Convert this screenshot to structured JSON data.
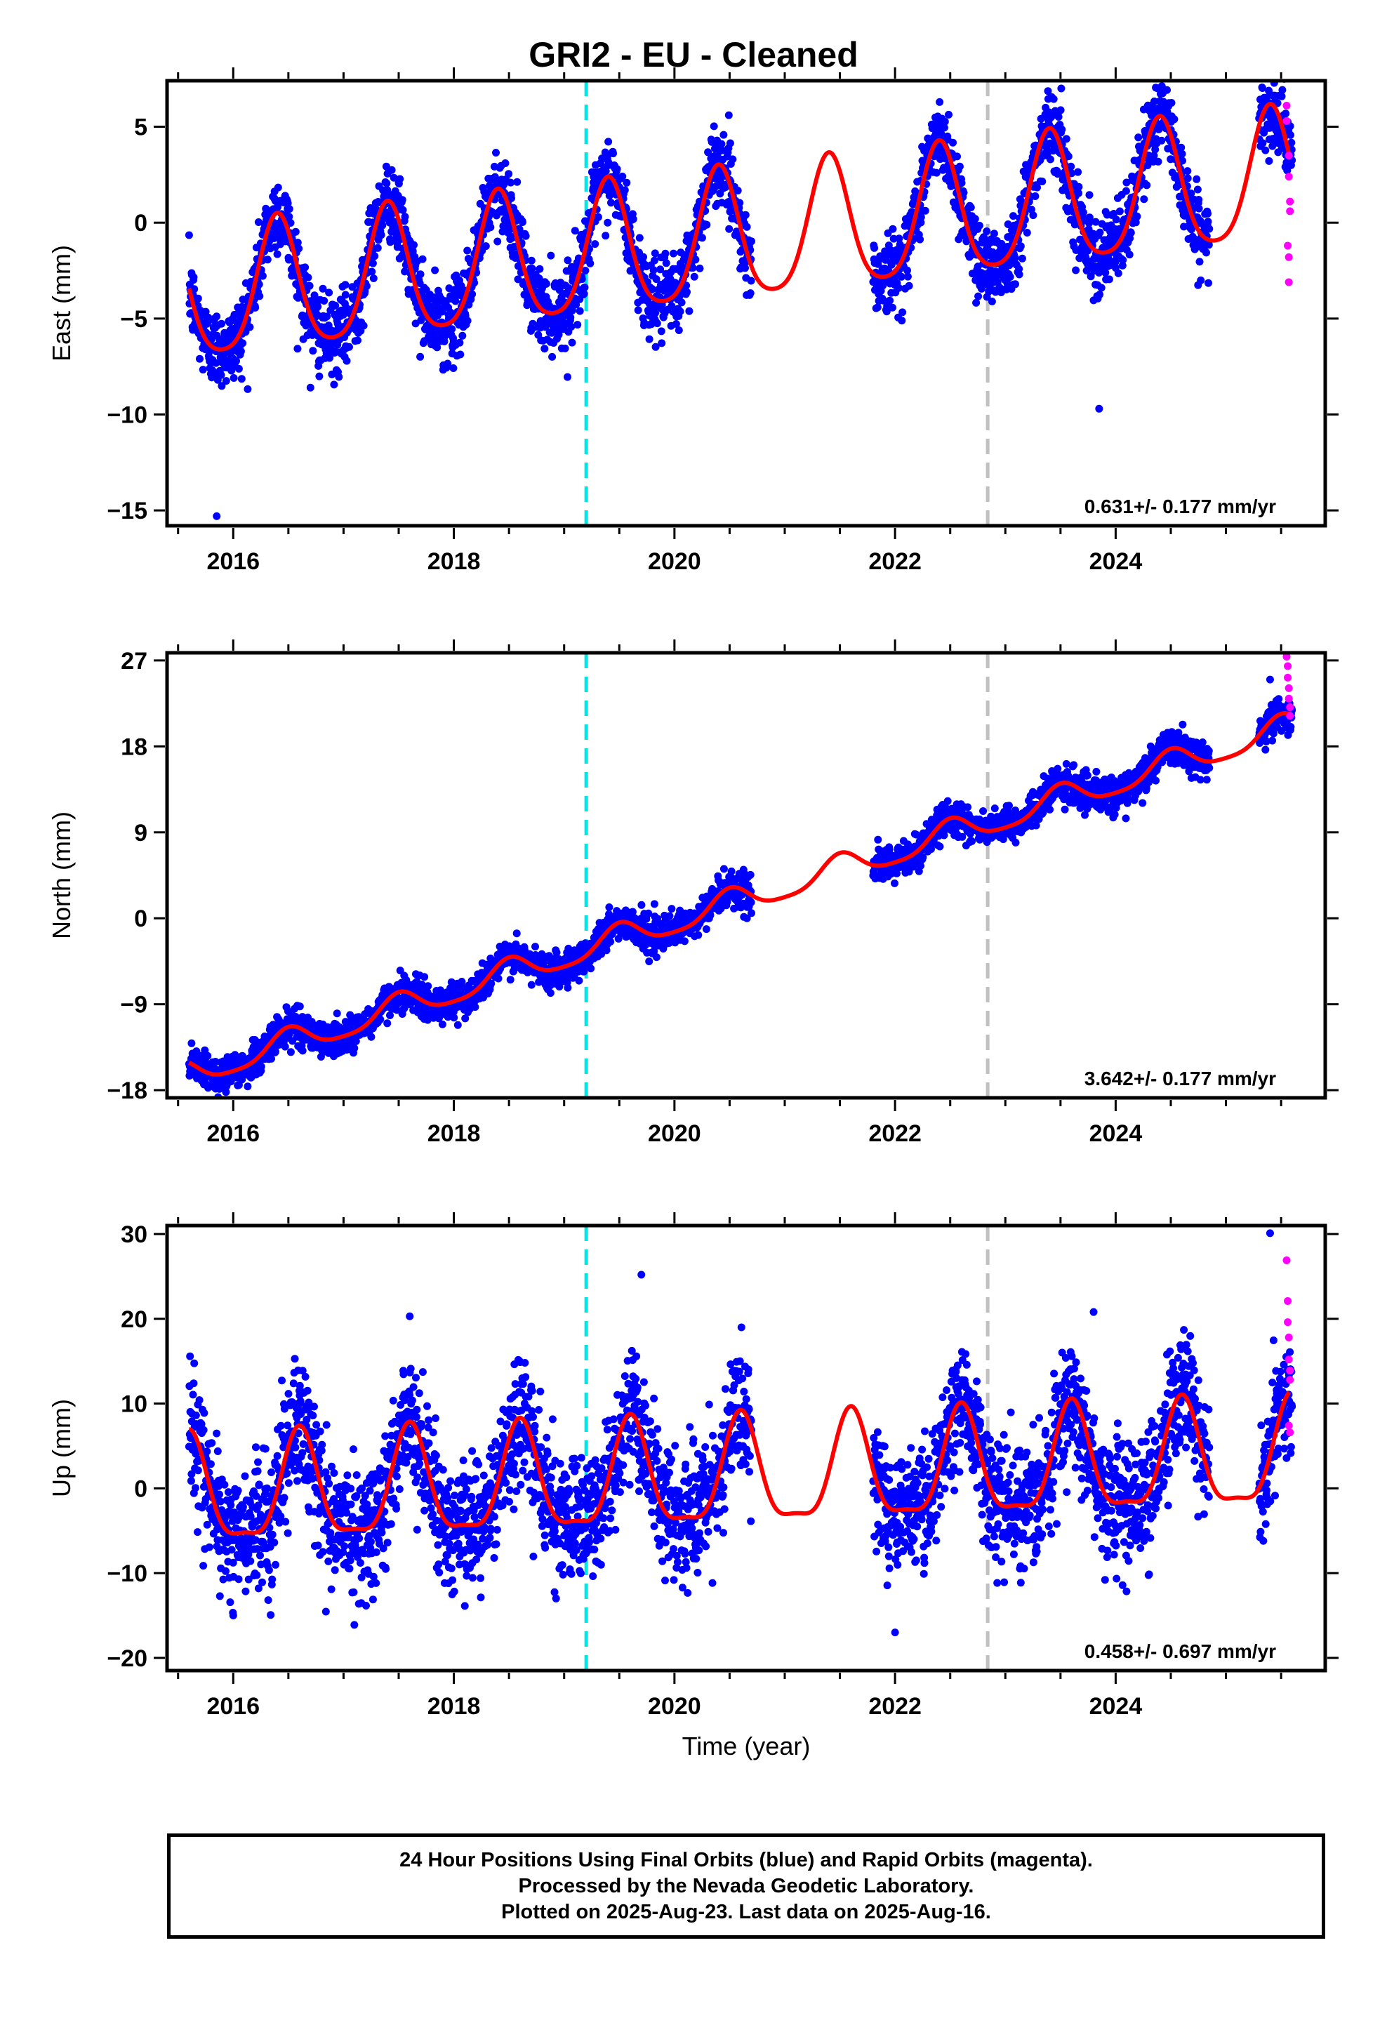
{
  "title": "GRI2  - EU - Cleaned",
  "xlabel": "Time (year)",
  "colors": {
    "final_orbits": "#0000ff",
    "rapid_orbits": "#ff00ff",
    "model": "#ff0000",
    "event_cyan": "#00e5e5",
    "event_gray": "#c0c0c0"
  },
  "footer": {
    "line1": "24 Hour Positions Using Final Orbits (blue) and Rapid Orbits (magenta).",
    "line2": "Processed by the Nevada Geodetic Laboratory.",
    "line3": "Plotted on 2025-Aug-23. Last data on 2025-Aug-16."
  },
  "chart_data": [
    {
      "type": "scatter",
      "component": "East",
      "ylabel": "East (mm)",
      "rate_text": "0.631+/- 0.177 mm/yr",
      "xlim": [
        2015.4,
        2025.9
      ],
      "ylim": [
        -15.8,
        7.4
      ],
      "xticks": [
        2016,
        2018,
        2020,
        2022,
        2024
      ],
      "yticks": [
        5,
        0,
        -5,
        -10,
        -15
      ],
      "event_lines": [
        {
          "x": 2019.2,
          "color": "cyan"
        },
        {
          "x": 2022.84,
          "color": "gray"
        }
      ],
      "model": {
        "offset": -0.9,
        "rate": 0.631,
        "ref_year": 2020.5,
        "amp_annual": 3.4,
        "phase": 2016.4,
        "amp_semi": 0.6
      },
      "gaps": [
        [
          2020.7,
          2021.8
        ],
        [
          2024.85,
          2025.3
        ]
      ],
      "scatter_sigma": 1.0,
      "outliers": [
        [
          2015.85,
          -15.3
        ],
        [
          2023.85,
          -9.7
        ],
        [
          2016.7,
          -8.6
        ],
        [
          2015.8,
          -7.9
        ]
      ],
      "rapid_points": [
        [
          2025.55,
          6.1
        ],
        [
          2025.55,
          5.3
        ],
        [
          2025.57,
          3.5
        ],
        [
          2025.57,
          2.4
        ],
        [
          2025.58,
          1.1
        ],
        [
          2025.58,
          0.6
        ],
        [
          2025.56,
          -1.2
        ],
        [
          2025.57,
          -1.8
        ],
        [
          2025.57,
          -3.1
        ]
      ]
    },
    {
      "type": "scatter",
      "component": "North",
      "ylabel": "North (mm)",
      "rate_text": "3.642+/- 0.177 mm/yr",
      "xlim": [
        2015.4,
        2025.9
      ],
      "ylim": [
        -18.8,
        27.8
      ],
      "xticks": [
        2016,
        2018,
        2020,
        2022,
        2024
      ],
      "yticks": [
        27,
        18,
        9,
        0,
        -9,
        -18
      ],
      "event_lines": [
        {
          "x": 2019.2,
          "color": "cyan"
        },
        {
          "x": 2022.84,
          "color": "gray"
        }
      ],
      "model": {
        "offset": 1.5,
        "rate": 3.642,
        "ref_year": 2020.5,
        "amp_annual": 1.4,
        "phase": 2016.5,
        "amp_semi": 0.3
      },
      "gaps": [
        [
          2020.7,
          2021.8
        ],
        [
          2024.85,
          2025.3
        ]
      ],
      "scatter_sigma": 0.9,
      "outliers": [
        [
          2025.4,
          25.0
        ],
        [
          2025.42,
          18.6
        ]
      ],
      "rapid_points": [
        [
          2025.55,
          27.4
        ],
        [
          2025.56,
          26.4
        ],
        [
          2025.56,
          25.2
        ],
        [
          2025.57,
          24.1
        ],
        [
          2025.57,
          23.0
        ],
        [
          2025.58,
          22.1
        ],
        [
          2025.58,
          21.2
        ]
      ]
    },
    {
      "type": "scatter",
      "component": "Up",
      "ylabel": "Up (mm)",
      "rate_text": "0.458+/- 0.697 mm/yr",
      "xlim": [
        2015.4,
        2025.9
      ],
      "ylim": [
        -21.5,
        31.0
      ],
      "xticks": [
        2016,
        2018,
        2020,
        2022,
        2024
      ],
      "yticks": [
        30,
        20,
        10,
        0,
        -10,
        -20
      ],
      "event_lines": [
        {
          "x": 2019.2,
          "color": "cyan"
        },
        {
          "x": 2022.84,
          "color": "gray"
        }
      ],
      "model": {
        "offset": 1.2,
        "rate": 0.458,
        "ref_year": 2020.5,
        "amp_annual": 6.2,
        "phase": 2016.6,
        "amp_semi": 1.8
      },
      "gaps": [
        [
          2020.7,
          2021.8
        ],
        [
          2024.85,
          2025.3
        ]
      ],
      "scatter_sigma": 3.6,
      "outliers": [
        [
          2019.7,
          25.2
        ],
        [
          2017.6,
          20.3
        ],
        [
          2023.8,
          20.8
        ],
        [
          2025.4,
          30.1
        ],
        [
          2016.0,
          -15.0
        ],
        [
          2022.0,
          -17.0
        ]
      ],
      "rapid_points": [
        [
          2025.55,
          26.9
        ],
        [
          2025.56,
          22.1
        ],
        [
          2025.56,
          19.6
        ],
        [
          2025.57,
          17.8
        ],
        [
          2025.57,
          15.2
        ],
        [
          2025.58,
          13.9
        ],
        [
          2025.58,
          12.8
        ],
        [
          2025.57,
          7.4
        ],
        [
          2025.58,
          6.6
        ]
      ]
    }
  ]
}
